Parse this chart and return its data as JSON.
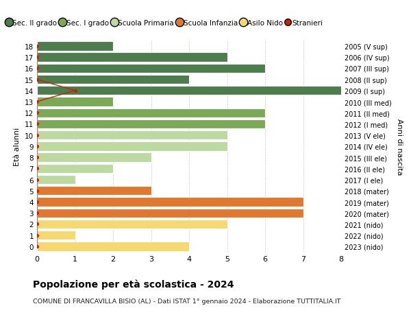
{
  "ages": [
    18,
    17,
    16,
    15,
    14,
    13,
    12,
    11,
    10,
    9,
    8,
    7,
    6,
    5,
    4,
    3,
    2,
    1,
    0
  ],
  "right_labels": [
    "2005 (V sup)",
    "2006 (IV sup)",
    "2007 (III sup)",
    "2008 (II sup)",
    "2009 (I sup)",
    "2010 (III med)",
    "2011 (II med)",
    "2012 (I med)",
    "2013 (V ele)",
    "2014 (IV ele)",
    "2015 (III ele)",
    "2016 (II ele)",
    "2017 (I ele)",
    "2018 (mater)",
    "2019 (mater)",
    "2020 (mater)",
    "2021 (nido)",
    "2022 (nido)",
    "2023 (nido)"
  ],
  "bar_values": [
    2,
    5,
    6,
    4,
    8,
    2,
    6,
    6,
    5,
    5,
    3,
    2,
    1,
    3,
    7,
    7,
    5,
    1,
    4
  ],
  "bar_colors": [
    "#4d7c4d",
    "#4d7c4d",
    "#4d7c4d",
    "#4d7c4d",
    "#4d7c4d",
    "#7aaa55",
    "#7aaa55",
    "#7aaa55",
    "#bcd9a0",
    "#bcd9a0",
    "#bcd9a0",
    "#bcd9a0",
    "#bcd9a0",
    "#e07830",
    "#e07830",
    "#e07830",
    "#f5d870",
    "#f5d870",
    "#f5d870"
  ],
  "stranieri_color": "#cc2200",
  "legend_labels": [
    "Sec. II grado",
    "Sec. I grado",
    "Scuola Primaria",
    "Scuola Infanzia",
    "Asilo Nido",
    "Stranieri"
  ],
  "legend_colors": [
    "#4d7c4d",
    "#7aaa55",
    "#bcd9a0",
    "#e07830",
    "#f5d870",
    "#cc2200"
  ],
  "title": "Popolazione per età scolastica - 2024",
  "subtitle": "COMUNE DI FRANCAVILLA BISIO (AL) - Dati ISTAT 1° gennaio 2024 - Elaborazione TUTTITALIA.IT",
  "ylabel": "Età alunni",
  "right_ylabel": "Anni di nascita",
  "xlabel_vals": [
    0,
    1,
    2,
    3,
    4,
    5,
    6,
    7,
    8
  ],
  "xlim": [
    0,
    8
  ],
  "background_color": "#ffffff",
  "grid_color": "#cccccc"
}
